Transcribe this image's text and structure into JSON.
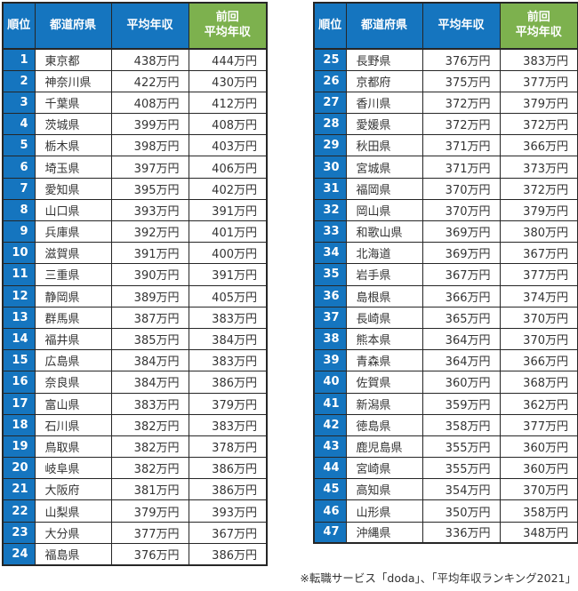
{
  "colors": {
    "header_blue": "#1575bf",
    "rank_cell_blue": "#1575bf",
    "previous_header_green": "#7db14e",
    "border": "#262626",
    "body_text": "#333333",
    "header_text": "#ffffff",
    "background": "#ffffff"
  },
  "chart_data": {
    "type": "table",
    "columns": [
      "順位",
      "都道府県",
      "平均年収",
      "前回\n平均年収"
    ],
    "unit": "万円",
    "layout": "two side-by-side tables: ranks 1-24 in left table, ranks 25-47 in right table",
    "rows": [
      [
        "1",
        "東京都",
        "438万円",
        "444万円"
      ],
      [
        "2",
        "神奈川県",
        "422万円",
        "430万円"
      ],
      [
        "3",
        "千葉県",
        "408万円",
        "412万円"
      ],
      [
        "4",
        "茨城県",
        "399万円",
        "408万円"
      ],
      [
        "5",
        "栃木県",
        "398万円",
        "403万円"
      ],
      [
        "6",
        "埼玉県",
        "397万円",
        "406万円"
      ],
      [
        "7",
        "愛知県",
        "395万円",
        "402万円"
      ],
      [
        "8",
        "山口県",
        "393万円",
        "391万円"
      ],
      [
        "9",
        "兵庫県",
        "392万円",
        "401万円"
      ],
      [
        "10",
        "滋賀県",
        "391万円",
        "400万円"
      ],
      [
        "11",
        "三重県",
        "390万円",
        "391万円"
      ],
      [
        "12",
        "静岡県",
        "389万円",
        "405万円"
      ],
      [
        "13",
        "群馬県",
        "387万円",
        "383万円"
      ],
      [
        "14",
        "福井県",
        "385万円",
        "384万円"
      ],
      [
        "15",
        "広島県",
        "384万円",
        "383万円"
      ],
      [
        "16",
        "奈良県",
        "384万円",
        "386万円"
      ],
      [
        "17",
        "富山県",
        "383万円",
        "379万円"
      ],
      [
        "18",
        "石川県",
        "382万円",
        "383万円"
      ],
      [
        "19",
        "鳥取県",
        "382万円",
        "378万円"
      ],
      [
        "20",
        "岐阜県",
        "382万円",
        "386万円"
      ],
      [
        "21",
        "大阪府",
        "381万円",
        "386万円"
      ],
      [
        "22",
        "山梨県",
        "379万円",
        "393万円"
      ],
      [
        "23",
        "大分県",
        "377万円",
        "367万円"
      ],
      [
        "24",
        "福島県",
        "376万円",
        "386万円"
      ],
      [
        "25",
        "長野県",
        "376万円",
        "383万円"
      ],
      [
        "26",
        "京都府",
        "375万円",
        "377万円"
      ],
      [
        "27",
        "香川県",
        "372万円",
        "379万円"
      ],
      [
        "28",
        "愛媛県",
        "372万円",
        "372万円"
      ],
      [
        "29",
        "秋田県",
        "371万円",
        "366万円"
      ],
      [
        "30",
        "宮城県",
        "371万円",
        "373万円"
      ],
      [
        "31",
        "福岡県",
        "370万円",
        "372万円"
      ],
      [
        "32",
        "岡山県",
        "370万円",
        "379万円"
      ],
      [
        "33",
        "和歌山県",
        "369万円",
        "380万円"
      ],
      [
        "34",
        "北海道",
        "369万円",
        "367万円"
      ],
      [
        "35",
        "岩手県",
        "367万円",
        "377万円"
      ],
      [
        "36",
        "島根県",
        "366万円",
        "374万円"
      ],
      [
        "37",
        "長崎県",
        "365万円",
        "370万円"
      ],
      [
        "38",
        "熊本県",
        "364万円",
        "370万円"
      ],
      [
        "39",
        "青森県",
        "364万円",
        "366万円"
      ],
      [
        "40",
        "佐賀県",
        "360万円",
        "368万円"
      ],
      [
        "41",
        "新潟県",
        "359万円",
        "362万円"
      ],
      [
        "42",
        "徳島県",
        "358万円",
        "377万円"
      ],
      [
        "43",
        "鹿児島県",
        "355万円",
        "360万円"
      ],
      [
        "44",
        "宮崎県",
        "355万円",
        "360万円"
      ],
      [
        "45",
        "高知県",
        "354万円",
        "370万円"
      ],
      [
        "46",
        "山形県",
        "350万円",
        "358万円"
      ],
      [
        "47",
        "沖縄県",
        "336万円",
        "348万円"
      ]
    ],
    "split": {
      "left_table_rows": "1-24",
      "right_table_rows": "25-47"
    },
    "source_note": "※転職サービス「doda」、「平均年収ランキング2021」"
  }
}
